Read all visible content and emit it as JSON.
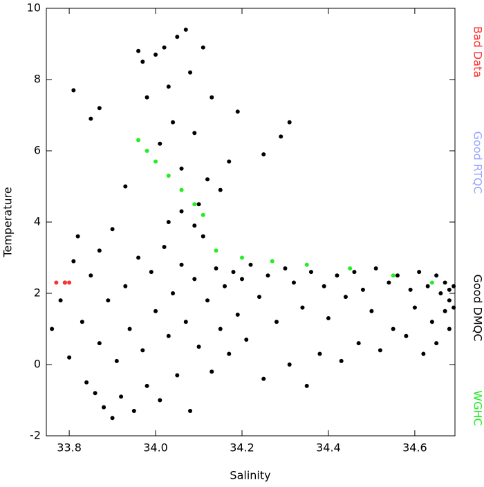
{
  "chart_data": {
    "type": "scatter",
    "x_label": "Salinity",
    "y_label": "Temperature",
    "xlim": [
      33.747,
      34.693
    ],
    "ylim": [
      -2,
      10
    ],
    "xticks": [
      33.8,
      {
        "value": 34,
        "label": "34.0"
      },
      34.2,
      34.4,
      34.6
    ],
    "yticks": [
      -2,
      0,
      2,
      4,
      6,
      8,
      10
    ],
    "series": [
      {
        "name": "Bad Data",
        "color": "#ff3030",
        "x": [
          33.77,
          33.79,
          33.8
        ],
        "y": [
          2.3,
          2.3,
          2.3
        ]
      },
      {
        "name": "Good RTQC",
        "color": "#9aa4ff",
        "x": [],
        "y": []
      },
      {
        "name": "Good DMQC",
        "color": "#000000",
        "x": [
          33.76,
          33.78,
          33.79,
          33.8,
          33.81,
          33.82,
          33.83,
          33.84,
          33.85,
          33.86,
          33.87,
          33.87,
          33.88,
          33.89,
          33.9,
          33.9,
          33.91,
          33.92,
          33.93,
          33.94,
          33.95,
          33.96,
          33.97,
          33.98,
          33.99,
          34.0,
          34.01,
          34.02,
          34.03,
          34.04,
          34.05,
          34.06,
          34.07,
          34.08,
          34.09,
          34.1,
          34.11,
          34.12,
          34.13,
          34.14,
          34.15,
          34.16,
          34.17,
          34.18,
          34.19,
          34.2,
          34.21,
          34.22,
          34.24,
          34.25,
          34.26,
          34.28,
          34.3,
          34.31,
          34.32,
          34.34,
          34.35,
          34.36,
          34.38,
          34.39,
          34.4,
          34.42,
          34.43,
          34.44,
          34.46,
          34.47,
          34.48,
          34.5,
          34.51,
          34.52,
          34.54,
          34.55,
          34.56,
          34.58,
          34.59,
          34.6,
          34.61,
          34.62,
          34.63,
          34.64,
          34.65,
          34.65,
          34.66,
          34.67,
          34.67,
          34.68,
          34.68,
          34.69,
          34.69,
          34.68,
          33.96,
          33.97,
          33.98,
          34.0,
          34.01,
          34.02,
          34.03,
          34.04,
          34.05,
          34.06,
          34.07,
          34.08,
          34.09,
          34.1,
          34.11,
          34.12,
          34.13,
          34.15,
          34.17,
          34.19,
          34.25,
          34.29,
          34.31,
          33.81,
          33.85,
          33.87,
          33.93,
          34.03,
          34.06,
          34.09
        ],
        "y": [
          1.0,
          1.8,
          2.3,
          0.2,
          2.9,
          3.6,
          1.2,
          -0.5,
          2.5,
          -0.8,
          3.2,
          0.6,
          -1.2,
          1.8,
          -1.5,
          3.8,
          0.1,
          -0.9,
          2.2,
          1.0,
          -1.3,
          3.0,
          0.4,
          -0.6,
          2.6,
          1.5,
          -1.0,
          3.3,
          0.8,
          2.0,
          -0.3,
          2.8,
          1.2,
          -1.3,
          2.4,
          0.5,
          3.6,
          1.8,
          -0.2,
          2.7,
          1.0,
          2.2,
          0.3,
          2.6,
          1.4,
          2.4,
          0.7,
          2.8,
          1.9,
          -0.4,
          2.5,
          1.2,
          2.7,
          0.0,
          2.3,
          1.6,
          -0.6,
          2.6,
          0.3,
          2.2,
          1.3,
          2.5,
          0.1,
          1.9,
          2.6,
          0.6,
          2.1,
          1.5,
          2.7,
          0.4,
          2.3,
          1.0,
          2.5,
          0.8,
          2.1,
          1.6,
          2.6,
          0.3,
          2.2,
          1.2,
          2.5,
          0.6,
          2.0,
          1.5,
          2.3,
          1.0,
          2.1,
          1.6,
          2.2,
          1.8,
          8.8,
          8.5,
          7.5,
          8.7,
          6.2,
          8.9,
          7.8,
          6.8,
          9.2,
          5.5,
          9.4,
          8.2,
          6.5,
          4.5,
          8.9,
          5.2,
          7.5,
          4.9,
          5.7,
          7.1,
          5.9,
          6.4,
          6.8,
          7.7,
          6.9,
          7.2,
          5.0,
          4.0,
          4.3,
          3.9
        ]
      },
      {
        "name": "WGHC",
        "color": "#22ee22",
        "x": [
          33.96,
          33.98,
          34.0,
          34.03,
          34.06,
          34.09,
          34.11,
          34.14,
          34.2,
          34.27,
          34.35,
          34.45,
          34.55,
          34.64
        ],
        "y": [
          6.3,
          6.0,
          5.7,
          5.3,
          4.9,
          4.5,
          4.2,
          3.2,
          3.0,
          2.9,
          2.8,
          2.7,
          2.5,
          2.3
        ]
      }
    ]
  }
}
